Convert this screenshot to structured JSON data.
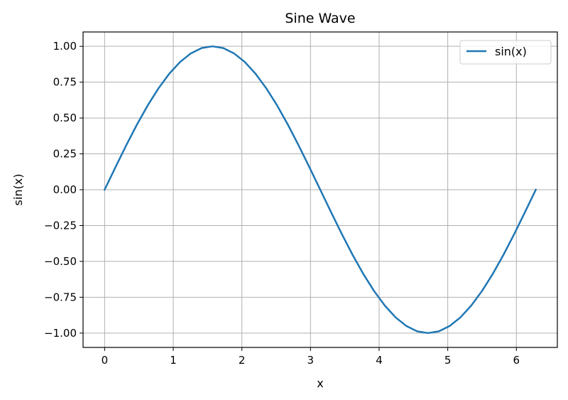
{
  "chart_data": {
    "type": "line",
    "title": "Sine Wave",
    "xlabel": "x",
    "ylabel": "sin(x)",
    "xlim": [
      -0.314,
      6.597
    ],
    "ylim": [
      -1.1,
      1.1
    ],
    "xticks": [
      0,
      1,
      2,
      3,
      4,
      5,
      6
    ],
    "xtick_labels": [
      "0",
      "1",
      "2",
      "3",
      "4",
      "5",
      "6"
    ],
    "yticks": [
      -1.0,
      -0.75,
      -0.5,
      -0.25,
      0.0,
      0.25,
      0.5,
      0.75,
      1.0
    ],
    "ytick_labels": [
      "−1.00",
      "−0.75",
      "−0.50",
      "−0.25",
      "0.00",
      "0.25",
      "0.50",
      "0.75",
      "1.00"
    ],
    "grid": true,
    "legend_position": "top-right",
    "series": [
      {
        "name": "sin(x)",
        "color": "#1f77b4",
        "x": [
          0.0,
          0.157,
          0.314,
          0.471,
          0.628,
          0.785,
          0.942,
          1.1,
          1.257,
          1.414,
          1.571,
          1.728,
          1.885,
          2.042,
          2.199,
          2.356,
          2.513,
          2.67,
          2.827,
          2.985,
          3.142,
          3.299,
          3.456,
          3.613,
          3.77,
          3.927,
          4.084,
          4.241,
          4.398,
          4.555,
          4.712,
          4.869,
          5.027,
          5.184,
          5.341,
          5.498,
          5.655,
          5.812,
          5.969,
          6.126,
          6.283
        ],
        "y": [
          0.0,
          0.156,
          0.309,
          0.454,
          0.588,
          0.707,
          0.809,
          0.891,
          0.951,
          0.988,
          1.0,
          0.988,
          0.951,
          0.891,
          0.809,
          0.707,
          0.588,
          0.454,
          0.309,
          0.156,
          0.0,
          -0.156,
          -0.309,
          -0.454,
          -0.588,
          -0.707,
          -0.809,
          -0.891,
          -0.951,
          -0.988,
          -1.0,
          -0.988,
          -0.951,
          -0.891,
          -0.809,
          -0.707,
          -0.588,
          -0.454,
          -0.309,
          -0.156,
          0.0
        ]
      }
    ]
  }
}
